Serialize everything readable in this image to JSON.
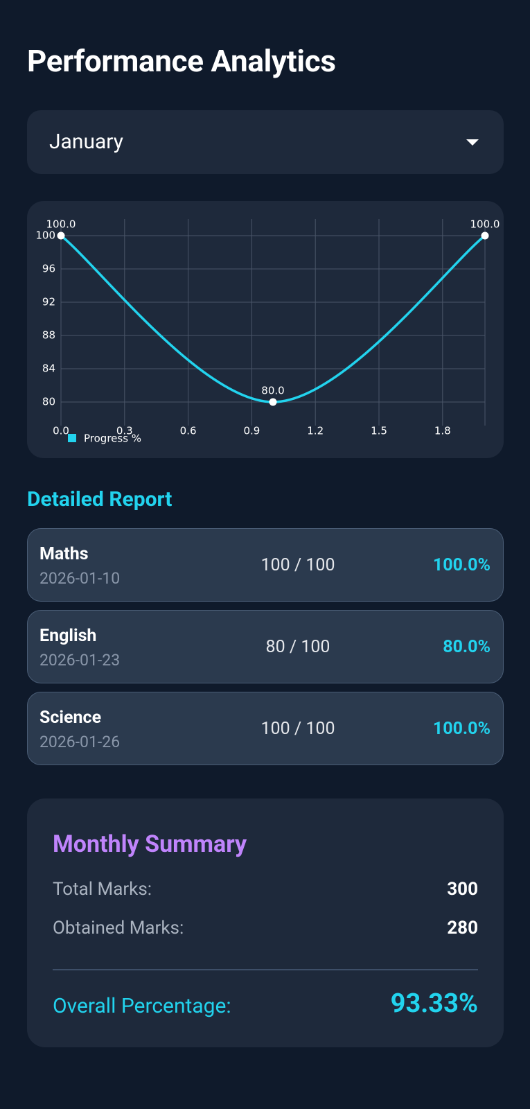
{
  "header": {
    "title": "Performance Analytics"
  },
  "month_select": {
    "value": "January"
  },
  "chart": {
    "type": "line",
    "x": [
      0,
      1,
      2
    ],
    "xlim": [
      0,
      2
    ],
    "xticks": [
      {
        "value": 0,
        "label": "0.0"
      },
      0.3,
      0.6,
      0.9,
      1.2,
      1.5,
      1.8
    ],
    "ylim": [
      78,
      102
    ],
    "yticks": [
      80,
      84,
      88,
      92,
      96,
      100
    ],
    "grid": true,
    "series": [
      {
        "name": "Progress %",
        "color": "#22d3ee",
        "values": [
          100,
          80,
          100
        ],
        "value_labels": [
          "100.0",
          "80.0",
          "100.0"
        ]
      }
    ]
  },
  "report": {
    "title": "Detailed Report",
    "rows": [
      {
        "subject": "Maths",
        "date": "2026-01-10",
        "score": "100 / 100",
        "percent": "100.0%"
      },
      {
        "subject": "English",
        "date": "2026-01-23",
        "score": "80 / 100",
        "percent": "80.0%"
      },
      {
        "subject": "Science",
        "date": "2026-01-26",
        "score": "100 / 100",
        "percent": "100.0%"
      }
    ]
  },
  "summary": {
    "title": "Monthly Summary",
    "total_label": "Total Marks:",
    "total_value": "300",
    "obtained_label": "Obtained Marks:",
    "obtained_value": "280",
    "overall_label": "Overall Percentage:",
    "overall_value": "93.33%"
  }
}
